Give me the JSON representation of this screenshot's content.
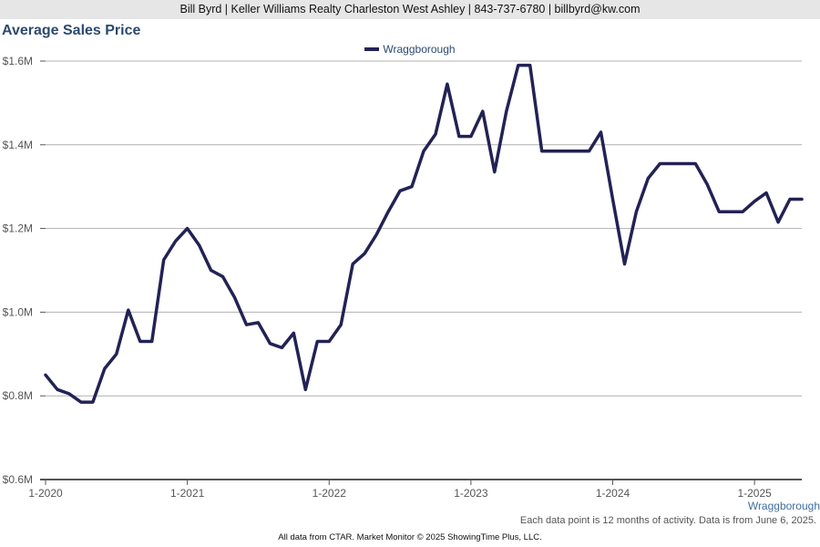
{
  "header": {
    "contact": "Bill Byrd | Keller Williams Realty Charleston West Ashley | 843-737-6780 | billbyrd@kw.com"
  },
  "chart_data": {
    "type": "line",
    "title": "Average Sales Price",
    "xlabel": "",
    "ylabel": "",
    "ylim": [
      600000,
      1600000
    ],
    "yticks": [
      {
        "value": 600000,
        "label": "$0.6M"
      },
      {
        "value": 800000,
        "label": "$0.8M"
      },
      {
        "value": 1000000,
        "label": "$1.0M"
      },
      {
        "value": 1200000,
        "label": "$1.2M"
      },
      {
        "value": 1400000,
        "label": "$1.4M"
      },
      {
        "value": 1600000,
        "label": "$1.6M"
      }
    ],
    "xticks": [
      {
        "index": 0,
        "label": "1-2020"
      },
      {
        "index": 12,
        "label": "1-2021"
      },
      {
        "index": 24,
        "label": "1-2022"
      },
      {
        "index": 36,
        "label": "1-2023"
      },
      {
        "index": 48,
        "label": "1-2024"
      },
      {
        "index": 60,
        "label": "1-2025"
      }
    ],
    "grid": true,
    "legend_position": "top-center",
    "series": [
      {
        "name": "Wraggborough",
        "color": "#222255",
        "values": [
          850000,
          815000,
          805000,
          785000,
          785000,
          865000,
          900000,
          1005000,
          930000,
          930000,
          1125000,
          1170000,
          1200000,
          1160000,
          1100000,
          1085000,
          1035000,
          970000,
          975000,
          925000,
          915000,
          950000,
          815000,
          930000,
          930000,
          970000,
          1115000,
          1140000,
          1185000,
          1240000,
          1290000,
          1300000,
          1385000,
          1425000,
          1545000,
          1420000,
          1420000,
          1480000,
          1335000,
          1480000,
          1590000,
          1590000,
          1385000,
          1385000,
          1385000,
          1385000,
          1385000,
          1430000,
          1270000,
          1115000,
          1240000,
          1320000,
          1355000,
          1355000,
          1355000,
          1355000,
          1305000,
          1240000,
          1240000,
          1240000,
          1265000,
          1285000,
          1215000,
          1270000,
          1270000
        ]
      }
    ]
  },
  "series_label": "Wraggborough",
  "note": "Each data point is 12 months of activity. Data is from June 6, 2025.",
  "footer": "All data from CTAR. Market Monitor © 2025 ShowingTime Plus, LLC."
}
